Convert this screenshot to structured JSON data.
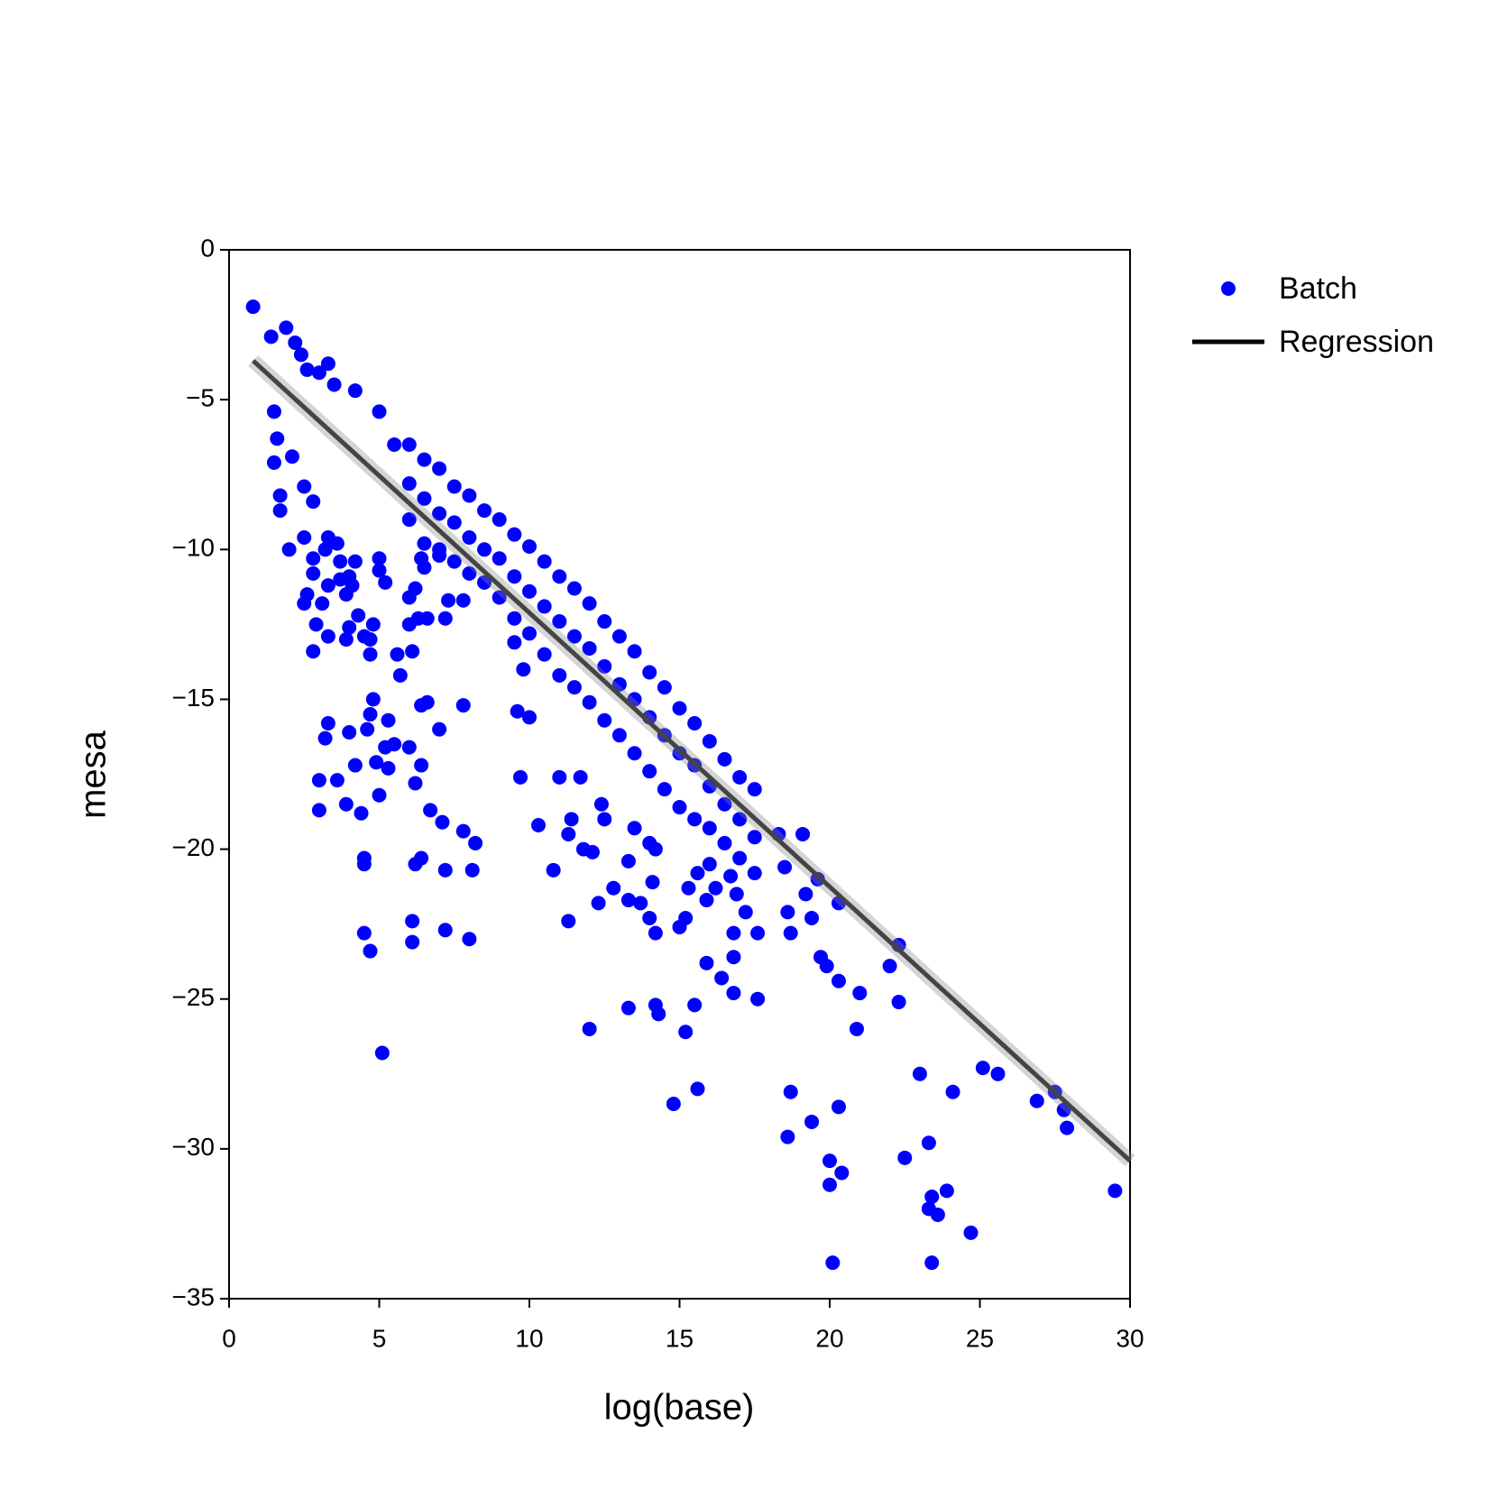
{
  "chart_data": {
    "type": "scatter",
    "x_label": "log(base)",
    "y_label": "mesa",
    "xlim": [
      0,
      30
    ],
    "ylim": [
      -35,
      0
    ],
    "xticks": [
      0,
      5,
      10,
      15,
      20,
      25,
      30
    ],
    "yticks": [
      {
        "value": -35,
        "label": "−35"
      },
      {
        "value": -30,
        "label": "−30"
      },
      {
        "value": -25,
        "label": "−25"
      },
      {
        "value": -20,
        "label": "−20"
      },
      {
        "value": -15,
        "label": "−15"
      },
      {
        "value": -10,
        "label": "−10"
      },
      {
        "value": -5,
        "label": "−5"
      },
      0
    ],
    "legend": "right",
    "series": [
      {
        "name": "Batch",
        "type": "scatter",
        "color": "#0000ff",
        "x": [
          0.8,
          1.4,
          1.9,
          2.2,
          2.4,
          2.6,
          3.0,
          3.3,
          3.5,
          4.2,
          1.5,
          1.6,
          1.5,
          1.7,
          1.7,
          2.1,
          2.0,
          2.5,
          2.5,
          2.8,
          2.8,
          2.8,
          2.5,
          2.6,
          3.1,
          3.3,
          2.9,
          2.8,
          3.3,
          3.3,
          3.2,
          3.6,
          3.7,
          3.7,
          4.0,
          4.1,
          4.2,
          3.9,
          3.9,
          4.0,
          4.3,
          4.5,
          4.7,
          4.7,
          4.8,
          5.0,
          5.0,
          5.2,
          5.6,
          5.7,
          6.0,
          6.1,
          6.3,
          6.6,
          6.0,
          6.2,
          6.5,
          6.4,
          7.0,
          7.3,
          7.2,
          7.8,
          4.8,
          4.7,
          5.3,
          3.3,
          3.2,
          3.6,
          3.0,
          3.0,
          4.0,
          4.6,
          4.2,
          4.9,
          5.2,
          5.5,
          5.3,
          6.0,
          6.4,
          6.2,
          5.0,
          3.9,
          4.4,
          6.7,
          6.6,
          6.4,
          7.0,
          7.8,
          7.1,
          7.8,
          8.2,
          4.5,
          4.5,
          6.2,
          6.4,
          7.2,
          8.1,
          6.1,
          6.1,
          7.2,
          8.0,
          4.5,
          4.7,
          5.1,
          9.5,
          9.8,
          9.6,
          10.0,
          9.7,
          10.3,
          11.0,
          11.3,
          11.8,
          12.5,
          12.4,
          13.5,
          13.3,
          14.0,
          14.2,
          14.1,
          13.3,
          13.7,
          12.8,
          12.3,
          11.3,
          14.0,
          14.2,
          15.0,
          15.2,
          15.3,
          15.6,
          16.0,
          16.2,
          15.9,
          16.7,
          16.9,
          17.2,
          17.6,
          16.8,
          16.8,
          15.9,
          16.4,
          16.8,
          17.6,
          18.7,
          18.6,
          19.2,
          19.4,
          19.7,
          19.9,
          20.3,
          21.0,
          22.0,
          22.3,
          22.3,
          20.9,
          20.3,
          19.6,
          18.3,
          19.1,
          18.5,
          13.3,
          14.2,
          14.3,
          15.5,
          15.2,
          12.0,
          14.8,
          15.6,
          18.7,
          18.6,
          19.4,
          20.3,
          20.0,
          20.4,
          20.0,
          20.1,
          23.0,
          24.1,
          23.3,
          22.5,
          23.9,
          23.4,
          23.3,
          23.6,
          24.7,
          23.4,
          25.1,
          25.6,
          26.9,
          27.5,
          27.8,
          27.9,
          29.5,
          12.1,
          10.8,
          11.4,
          11.7,
          5.0,
          5.5,
          6.0,
          6.0,
          6.0,
          6.5,
          6.5,
          6.5,
          7.0,
          7.0,
          7.0,
          7.5,
          7.5,
          7.5,
          8.0,
          8.0,
          8.0,
          8.5,
          8.5,
          8.5,
          9.0,
          9.0,
          9.0,
          9.5,
          9.5,
          9.5,
          10.0,
          10.0,
          10.0,
          10.5,
          10.5,
          10.5,
          11.0,
          11.0,
          11.0,
          11.5,
          11.5,
          11.5,
          12.0,
          12.0,
          12.0,
          12.5,
          12.5,
          12.5,
          13.0,
          13.0,
          13.0,
          13.5,
          13.5,
          13.5,
          14.0,
          14.0,
          14.0,
          14.5,
          14.5,
          14.5,
          15.0,
          15.0,
          15.0,
          15.5,
          15.5,
          15.5,
          16.0,
          16.0,
          16.0,
          16.5,
          16.5,
          16.5,
          17.0,
          17.0,
          17.0,
          17.5,
          17.5,
          17.5
        ],
        "values": [
          -1.9,
          -2.9,
          -2.6,
          -3.1,
          -3.5,
          -4.0,
          -4.1,
          -3.8,
          -4.5,
          -4.7,
          -5.4,
          -6.3,
          -7.1,
          -8.2,
          -8.7,
          -6.9,
          -10.0,
          -9.6,
          -7.9,
          -8.4,
          -10.3,
          -10.8,
          -11.8,
          -11.5,
          -11.8,
          -11.2,
          -12.5,
          -13.4,
          -12.9,
          -9.6,
          -10.0,
          -9.8,
          -10.4,
          -11.0,
          -10.9,
          -11.2,
          -10.4,
          -11.5,
          -13.0,
          -12.6,
          -12.2,
          -12.9,
          -13.0,
          -13.5,
          -12.5,
          -10.3,
          -10.7,
          -11.1,
          -13.5,
          -14.2,
          -12.5,
          -13.4,
          -12.3,
          -12.3,
          -11.6,
          -11.3,
          -10.6,
          -10.3,
          -10.0,
          -11.7,
          -12.3,
          -11.7,
          -15.0,
          -15.5,
          -15.7,
          -15.8,
          -16.3,
          -17.7,
          -17.7,
          -18.7,
          -16.1,
          -16.0,
          -17.2,
          -17.1,
          -16.6,
          -16.5,
          -17.3,
          -16.6,
          -17.2,
          -17.8,
          -18.2,
          -18.5,
          -18.8,
          -18.7,
          -15.1,
          -15.2,
          -16.0,
          -15.2,
          -19.1,
          -19.4,
          -19.8,
          -20.3,
          -20.5,
          -20.5,
          -20.3,
          -20.7,
          -20.7,
          -22.4,
          -23.1,
          -22.7,
          -23.0,
          -22.8,
          -23.4,
          -26.8,
          -13.1,
          -14.0,
          -15.4,
          -15.6,
          -17.6,
          -19.2,
          -17.6,
          -19.5,
          -20.0,
          -19.0,
          -18.5,
          -19.3,
          -20.4,
          -19.8,
          -20.0,
          -21.1,
          -21.7,
          -21.8,
          -21.3,
          -21.8,
          -22.4,
          -22.3,
          -22.8,
          -22.6,
          -22.3,
          -21.3,
          -20.8,
          -20.5,
          -21.3,
          -21.7,
          -20.9,
          -21.5,
          -22.1,
          -22.8,
          -22.8,
          -23.6,
          -23.8,
          -24.3,
          -24.8,
          -25.0,
          -22.8,
          -22.1,
          -21.5,
          -22.3,
          -23.6,
          -23.9,
          -24.4,
          -24.8,
          -23.9,
          -23.2,
          -25.1,
          -26.0,
          -21.8,
          -21.0,
          -19.5,
          -19.5,
          -20.6,
          -25.3,
          -25.2,
          -25.5,
          -25.2,
          -26.1,
          -26.0,
          -28.5,
          -28.0,
          -28.1,
          -29.6,
          -29.1,
          -28.6,
          -30.4,
          -30.8,
          -31.2,
          -33.8,
          -27.5,
          -28.1,
          -29.8,
          -30.3,
          -31.4,
          -31.6,
          -32.0,
          -32.2,
          -32.8,
          -33.8,
          -27.3,
          -27.5,
          -28.4,
          -28.1,
          -28.7,
          -29.3,
          -31.4,
          -20.1,
          -20.7,
          -19.0,
          -17.6,
          -5.4,
          -6.5,
          -6.5,
          -7.8,
          -9.0,
          -7.0,
          -8.3,
          -9.8,
          -7.3,
          -8.8,
          -10.2,
          -7.9,
          -9.1,
          -10.4,
          -8.2,
          -9.6,
          -10.8,
          -8.7,
          -10.0,
          -11.1,
          -9.0,
          -10.3,
          -11.6,
          -9.5,
          -10.9,
          -12.3,
          -9.9,
          -11.4,
          -12.8,
          -10.4,
          -11.9,
          -13.5,
          -10.9,
          -12.4,
          -14.2,
          -11.3,
          -12.9,
          -14.6,
          -11.8,
          -13.3,
          -15.1,
          -12.4,
          -13.9,
          -15.7,
          -12.9,
          -14.5,
          -16.2,
          -13.4,
          -15.0,
          -16.8,
          -14.1,
          -15.6,
          -17.4,
          -14.6,
          -16.2,
          -18.0,
          -15.3,
          -16.8,
          -18.6,
          -15.8,
          -17.2,
          -19.0,
          -16.4,
          -17.9,
          -19.3,
          -17.0,
          -18.5,
          -19.8,
          -17.6,
          -19.0,
          -20.3,
          -18.0,
          -19.6,
          -20.8
        ]
      },
      {
        "name": "Regression",
        "type": "line",
        "color": "#444444",
        "x": [
          0.8,
          30
        ],
        "values": [
          -3.7,
          -30.4
        ]
      }
    ]
  }
}
